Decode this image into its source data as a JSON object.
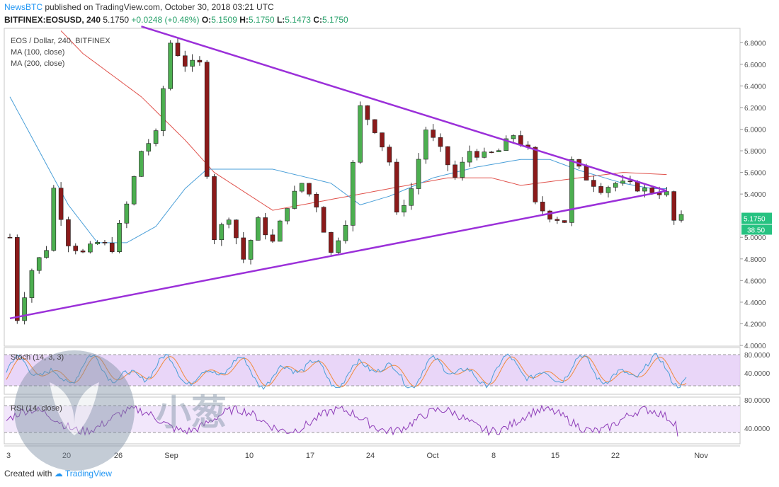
{
  "header": {
    "publisher": "NewsBTC",
    "published_text": "published on TradingView.com, October 30, 2018 03:21 UTC",
    "symbol_line": "BITFINEX:EOSUSD, 240",
    "last": "5.1750",
    "change": "+0.0248 (+0.48%)",
    "o_label": "O:",
    "o": "5.1509",
    "h_label": "H:",
    "h": "5.1750",
    "l_label": "L:",
    "l": "5.1473",
    "c_label": "C:",
    "c": "5.1750"
  },
  "main_legend": {
    "title": "EOS / Dollar, 240, BITFINEX",
    "ma100": "MA (100, close)",
    "ma200": "MA (200, close)"
  },
  "stoch_legend": "Stoch (14, 3, 3)",
  "rsi_legend": "RSI (14, close)",
  "watermark_text": "小葱",
  "footer": {
    "created_with": "Created with",
    "brand": "TradingView"
  },
  "price_tag": {
    "value": "5.1750",
    "countdown": "38:50",
    "color": "#26c281"
  },
  "colors": {
    "up": "#4caf50",
    "down": "#8b1a1a",
    "trendline": "#9b30d9",
    "ma100": "#4a9fd8",
    "ma200": "#e0524c",
    "stoch_k": "#4a9fd8",
    "stoch_d": "#f08a3c",
    "rsi": "#8e3cb8",
    "band": "#e1c8f5"
  },
  "chart_data": {
    "type": "candlestick",
    "title": "EOS / Dollar, 240, BITFINEX",
    "x_ticks": [
      "3",
      "20",
      "26",
      "Sep",
      "10",
      "17",
      "24",
      "Oct",
      "8",
      "15",
      "22",
      "Nov"
    ],
    "y_ticks": [
      "6.8000",
      "6.6000",
      "6.4000",
      "6.2000",
      "6.0000",
      "5.8000",
      "5.6000",
      "5.4000",
      "5.0000",
      "4.8000",
      "4.6000",
      "4.4000",
      "4.2000",
      "4.0000"
    ],
    "ylim": [
      4.0,
      6.9
    ],
    "price_anchors": [
      [
        0,
        5.0
      ],
      [
        1,
        4.25
      ],
      [
        3,
        4.7
      ],
      [
        5,
        4.9
      ],
      [
        6,
        5.45
      ],
      [
        8,
        4.95
      ],
      [
        10,
        4.85
      ],
      [
        12,
        4.95
      ],
      [
        14,
        4.9
      ],
      [
        16,
        5.3
      ],
      [
        18,
        5.8
      ],
      [
        20,
        5.95
      ],
      [
        22,
        6.8
      ],
      [
        24,
        6.6
      ],
      [
        26,
        6.6
      ],
      [
        27,
        5.6
      ],
      [
        28,
        5.0
      ],
      [
        30,
        5.2
      ],
      [
        32,
        4.8
      ],
      [
        34,
        5.15
      ],
      [
        36,
        4.95
      ],
      [
        38,
        5.3
      ],
      [
        40,
        5.5
      ],
      [
        42,
        5.3
      ],
      [
        44,
        4.85
      ],
      [
        46,
        5.15
      ],
      [
        48,
        6.2
      ],
      [
        50,
        6.0
      ],
      [
        52,
        5.7
      ],
      [
        53,
        5.2
      ],
      [
        55,
        5.45
      ],
      [
        57,
        6.0
      ],
      [
        59,
        5.8
      ],
      [
        61,
        5.55
      ],
      [
        63,
        5.8
      ],
      [
        65,
        5.75
      ],
      [
        67,
        5.8
      ],
      [
        69,
        5.95
      ],
      [
        71,
        5.8
      ],
      [
        72,
        5.3
      ],
      [
        74,
        5.2
      ],
      [
        76,
        5.15
      ],
      [
        77,
        5.7
      ],
      [
        79,
        5.55
      ],
      [
        81,
        5.45
      ],
      [
        83,
        5.5
      ],
      [
        85,
        5.48
      ],
      [
        87,
        5.44
      ],
      [
        89,
        5.42
      ],
      [
        90,
        5.4
      ],
      [
        91,
        5.15
      ],
      [
        92,
        5.175
      ]
    ],
    "ma100_anchors": [
      [
        0,
        6.3
      ],
      [
        8,
        5.3
      ],
      [
        12,
        4.95
      ],
      [
        16,
        4.95
      ],
      [
        20,
        5.1
      ],
      [
        24,
        5.45
      ],
      [
        27,
        5.63
      ],
      [
        36,
        5.63
      ],
      [
        44,
        5.5
      ],
      [
        48,
        5.3
      ],
      [
        52,
        5.38
      ],
      [
        58,
        5.55
      ],
      [
        64,
        5.65
      ],
      [
        70,
        5.72
      ],
      [
        74,
        5.72
      ],
      [
        78,
        5.62
      ],
      [
        84,
        5.5
      ],
      [
        88,
        5.45
      ],
      [
        90,
        5.45
      ]
    ],
    "ma200_anchors": [
      [
        0,
        7.4
      ],
      [
        10,
        6.7
      ],
      [
        18,
        6.3
      ],
      [
        24,
        5.9
      ],
      [
        28,
        5.6
      ],
      [
        36,
        5.25
      ],
      [
        44,
        5.35
      ],
      [
        52,
        5.45
      ],
      [
        60,
        5.55
      ],
      [
        66,
        5.55
      ],
      [
        70,
        5.48
      ],
      [
        78,
        5.55
      ],
      [
        84,
        5.6
      ],
      [
        90,
        5.58
      ]
    ],
    "trendlines": [
      {
        "name": "descending resistance",
        "from": [
          18,
          6.95
        ],
        "to": [
          90,
          5.43
        ]
      },
      {
        "name": "ascending support",
        "from": [
          0,
          4.25
        ],
        "to": [
          90,
          5.43
        ]
      }
    ],
    "stoch": {
      "levels": [
        80,
        20
      ],
      "tick_labels": [
        "80.0000",
        "40.0000"
      ]
    },
    "rsi": {
      "levels": [
        70,
        30
      ],
      "tick_labels": [
        "80.0000",
        "40.0000"
      ]
    }
  }
}
